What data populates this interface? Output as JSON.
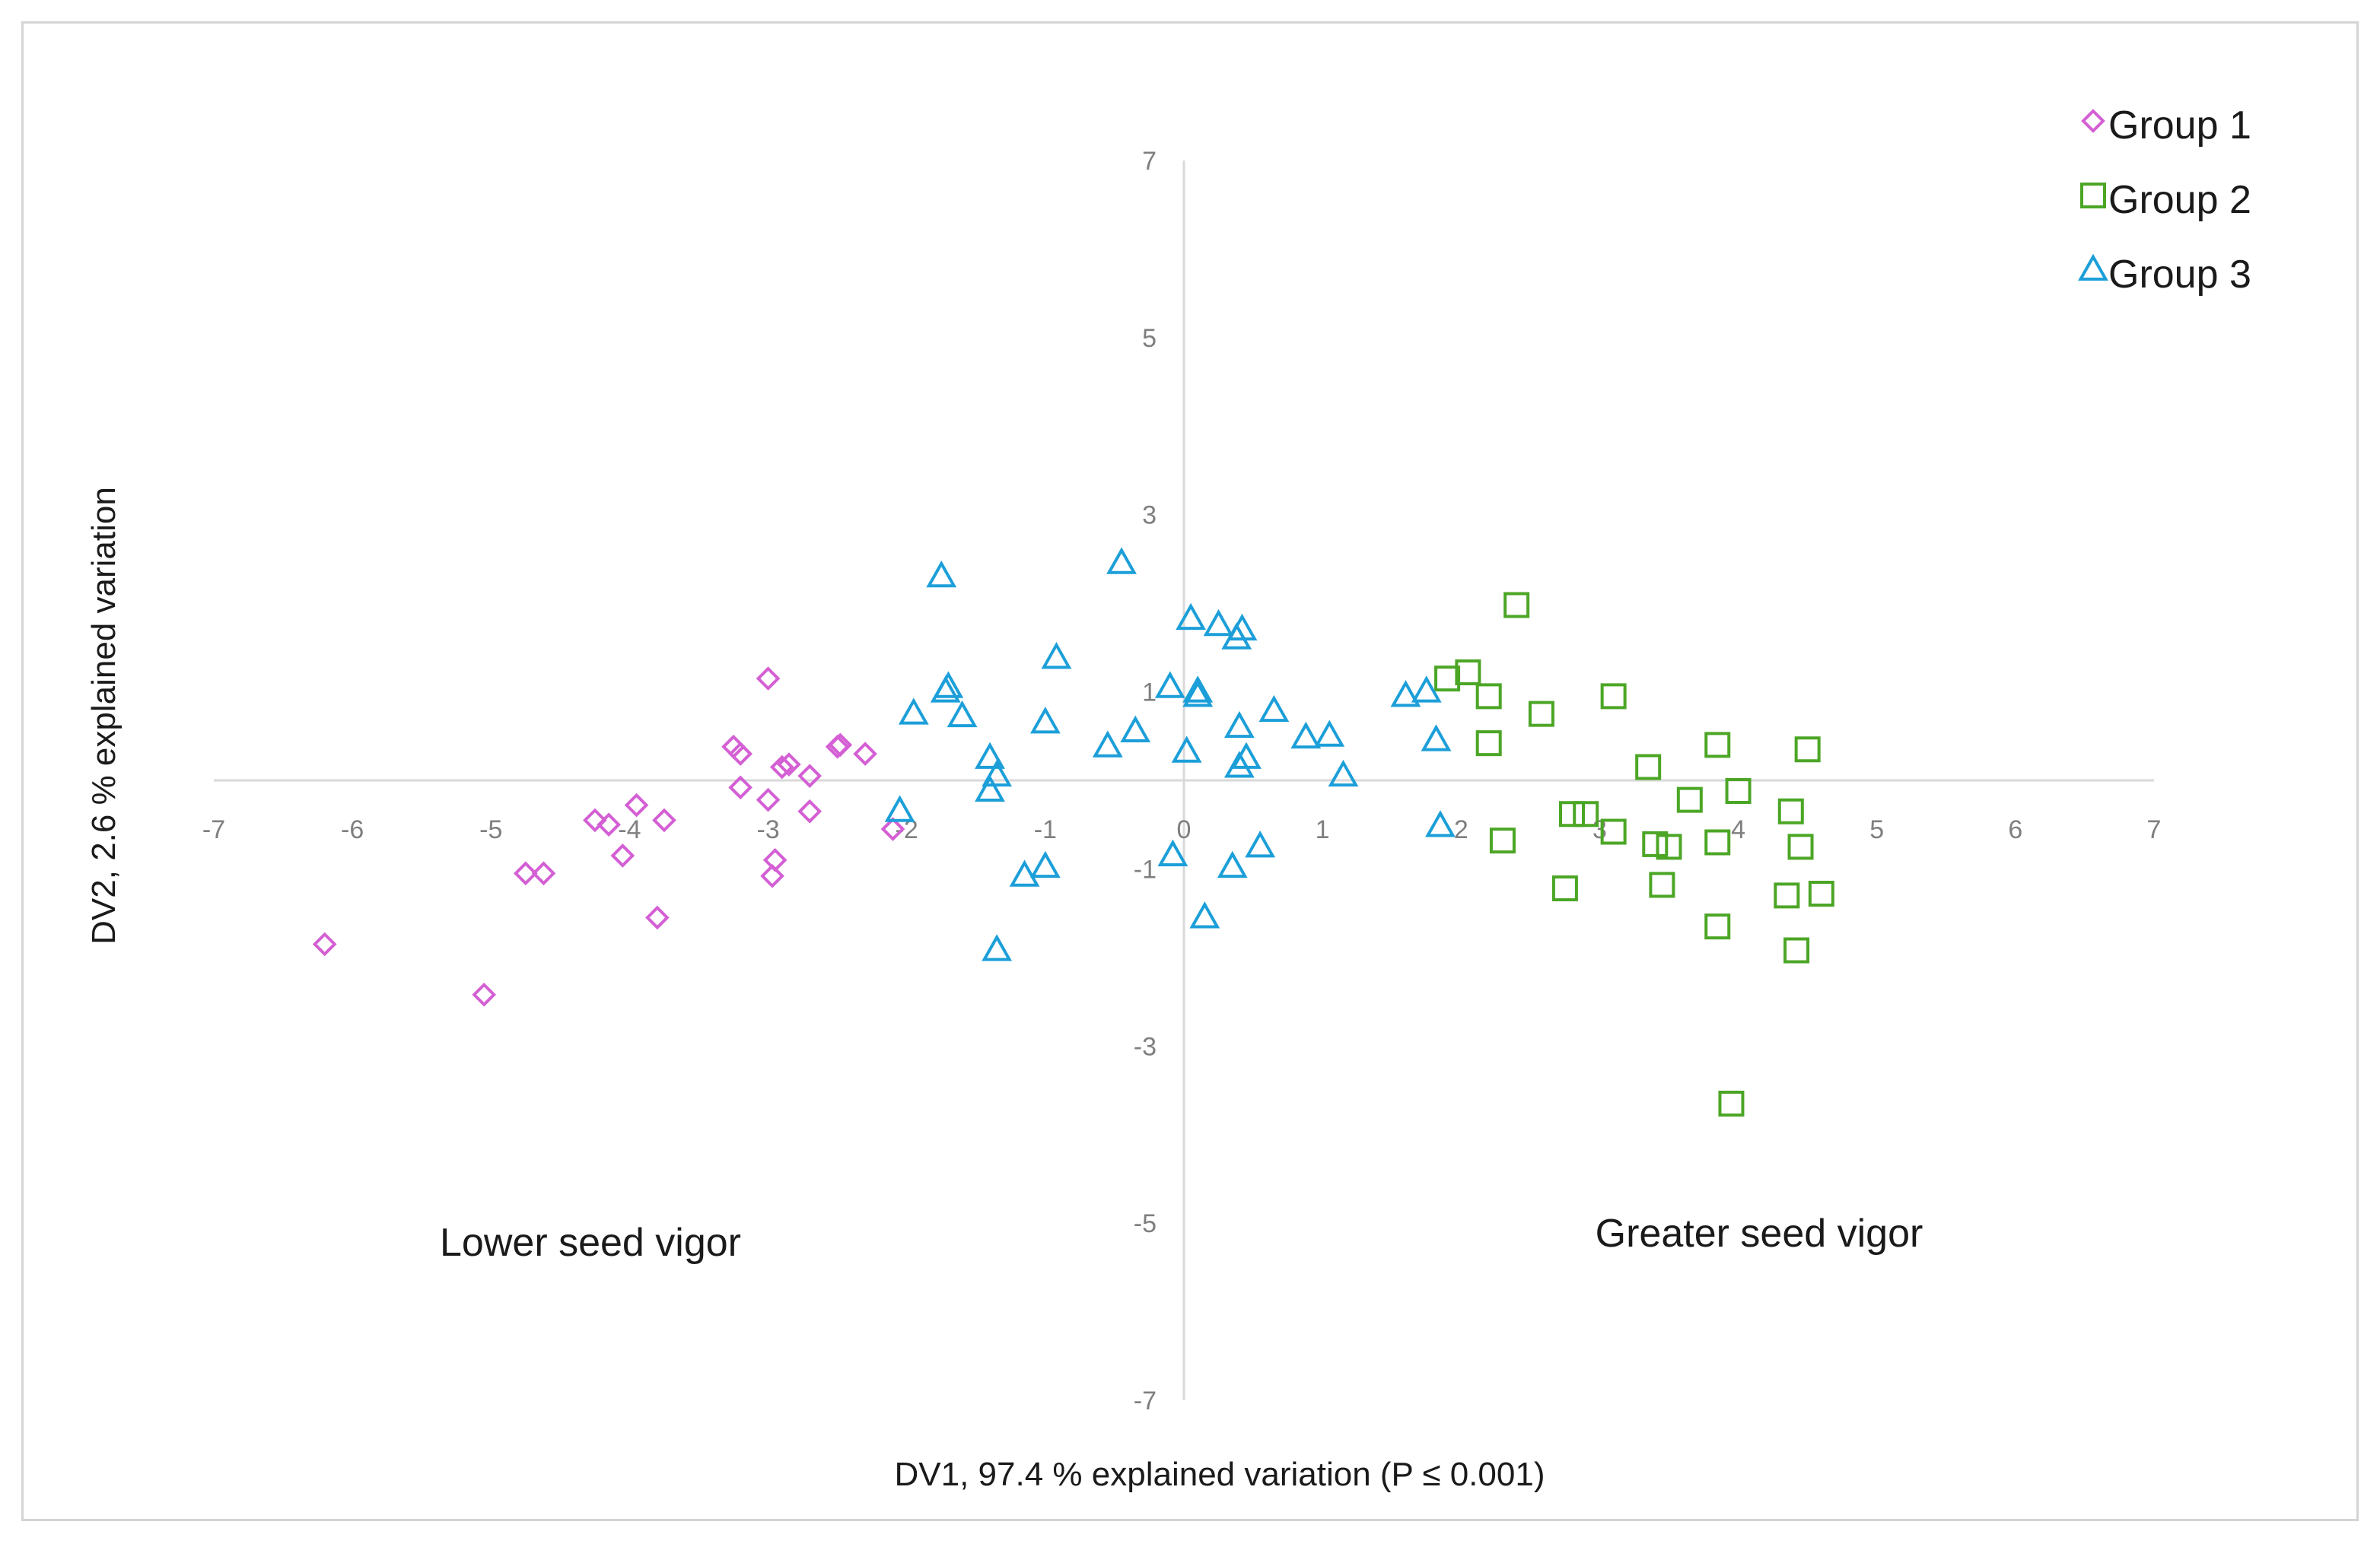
{
  "chart_data": {
    "type": "scatter",
    "title": "",
    "xlabel": "DV1, 97.4 %  explained variation (P ≤ 0.001)",
    "ylabel": "DV2, 2.6 % explained variation",
    "xlim": [
      -7,
      7
    ],
    "ylim": [
      -7,
      7
    ],
    "x_ticks": [
      -7,
      -6,
      -5,
      -4,
      -3,
      -2,
      -1,
      0,
      1,
      2,
      3,
      4,
      5,
      6,
      7
    ],
    "y_ticks": [
      7,
      5,
      3,
      1,
      -1,
      -3,
      -5,
      -7
    ],
    "legend_position": "top-right",
    "annotations": [
      {
        "text": "Lower seed vigor",
        "x": -4.2,
        "y": -5.3
      },
      {
        "text": "Greater seed vigor",
        "x": 4.2,
        "y": -5.2
      }
    ],
    "series": [
      {
        "name": "Group 1",
        "marker": "diamond",
        "color": "#d45fd4",
        "points": [
          [
            -6.2,
            -1.85
          ],
          [
            -5.05,
            -2.42
          ],
          [
            -4.75,
            -1.05
          ],
          [
            -4.62,
            -1.05
          ],
          [
            -4.25,
            -0.45
          ],
          [
            -4.15,
            -0.5
          ],
          [
            -4.05,
            -0.85
          ],
          [
            -3.95,
            -0.28
          ],
          [
            -3.8,
            -1.55
          ],
          [
            -3.75,
            -0.45
          ],
          [
            -3.25,
            0.38
          ],
          [
            -3.2,
            0.3
          ],
          [
            -3.2,
            -0.08
          ],
          [
            -3.0,
            1.15
          ],
          [
            -3.0,
            -0.22
          ],
          [
            -2.95,
            -0.9
          ],
          [
            -2.97,
            -1.08
          ],
          [
            -2.9,
            0.15
          ],
          [
            -2.85,
            0.18
          ],
          [
            -2.7,
            0.05
          ],
          [
            -2.7,
            -0.35
          ],
          [
            -2.5,
            0.38
          ],
          [
            -2.48,
            0.4
          ],
          [
            -2.3,
            0.3
          ],
          [
            -2.1,
            -0.55
          ]
        ]
      },
      {
        "name": "Group 2",
        "marker": "square",
        "color": "#4ca626",
        "points": [
          [
            1.9,
            1.15
          ],
          [
            2.05,
            1.22
          ],
          [
            2.2,
            0.95
          ],
          [
            2.2,
            0.42
          ],
          [
            2.3,
            -0.68
          ],
          [
            2.4,
            1.98
          ],
          [
            2.58,
            0.75
          ],
          [
            2.75,
            -1.22
          ],
          [
            2.8,
            -0.38
          ],
          [
            2.9,
            -0.38
          ],
          [
            3.1,
            0.95
          ],
          [
            3.1,
            -0.58
          ],
          [
            3.35,
            0.15
          ],
          [
            3.4,
            -0.72
          ],
          [
            3.45,
            -1.18
          ],
          [
            3.5,
            -0.75
          ],
          [
            3.65,
            -0.22
          ],
          [
            3.85,
            0.4
          ],
          [
            3.85,
            -0.7
          ],
          [
            3.85,
            -1.65
          ],
          [
            3.95,
            -3.65
          ],
          [
            4.0,
            -0.12
          ],
          [
            4.35,
            -1.3
          ],
          [
            4.38,
            -0.35
          ],
          [
            4.42,
            -1.92
          ],
          [
            4.45,
            -0.75
          ],
          [
            4.5,
            0.35
          ],
          [
            4.6,
            -1.28
          ]
        ]
      },
      {
        "name": "Group 3",
        "marker": "triangle",
        "color": "#1c9fd9",
        "points": [
          [
            -2.05,
            -0.35
          ],
          [
            -1.95,
            0.75
          ],
          [
            -1.75,
            2.3
          ],
          [
            -1.72,
            1.0
          ],
          [
            -1.7,
            1.05
          ],
          [
            -1.6,
            0.72
          ],
          [
            -1.4,
            0.25
          ],
          [
            -1.4,
            -0.12
          ],
          [
            -1.35,
            0.05
          ],
          [
            -1.35,
            -1.92
          ],
          [
            -1.15,
            -1.08
          ],
          [
            -1.0,
            -0.98
          ],
          [
            -1.0,
            0.65
          ],
          [
            -0.92,
            1.38
          ],
          [
            -0.55,
            0.38
          ],
          [
            -0.45,
            2.45
          ],
          [
            -0.35,
            0.55
          ],
          [
            -0.1,
            1.05
          ],
          [
            -0.08,
            -0.85
          ],
          [
            0.02,
            0.32
          ],
          [
            0.05,
            1.82
          ],
          [
            0.1,
            0.95
          ],
          [
            0.1,
            1.0
          ],
          [
            0.15,
            -1.55
          ],
          [
            0.25,
            1.75
          ],
          [
            0.35,
            -0.98
          ],
          [
            0.38,
            1.6
          ],
          [
            0.4,
            0.15
          ],
          [
            0.4,
            0.6
          ],
          [
            0.42,
            1.7
          ],
          [
            0.45,
            0.25
          ],
          [
            0.55,
            -0.75
          ],
          [
            0.65,
            0.78
          ],
          [
            0.88,
            0.48
          ],
          [
            1.05,
            0.5
          ],
          [
            1.15,
            0.05
          ],
          [
            1.6,
            0.95
          ],
          [
            1.75,
            1.0
          ],
          [
            1.82,
            0.45
          ],
          [
            1.85,
            -0.52
          ]
        ]
      }
    ]
  },
  "colors": {
    "axis": "#d9d9d9",
    "tick_text": "#7f7f7f",
    "frame": "#d4d4d4"
  }
}
